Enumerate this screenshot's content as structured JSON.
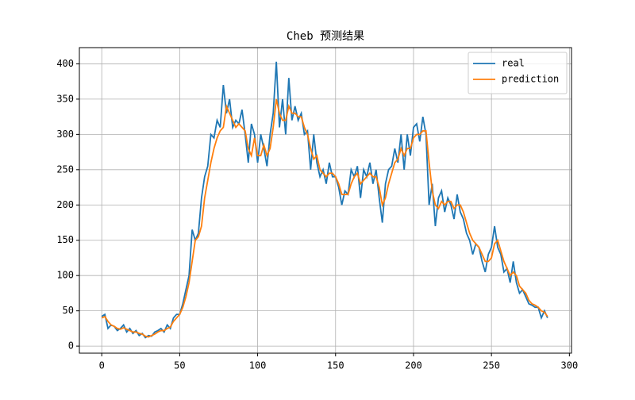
{
  "chart_data": {
    "type": "line",
    "title": "Cheb 预测结果",
    "x": [
      0,
      2,
      4,
      6,
      8,
      10,
      12,
      14,
      16,
      18,
      20,
      22,
      24,
      26,
      28,
      30,
      32,
      34,
      36,
      38,
      40,
      42,
      44,
      46,
      48,
      50,
      52,
      54,
      56,
      58,
      60,
      62,
      64,
      66,
      68,
      70,
      72,
      74,
      76,
      78,
      80,
      82,
      84,
      86,
      88,
      90,
      92,
      94,
      96,
      98,
      100,
      102,
      104,
      106,
      108,
      110,
      112,
      114,
      116,
      118,
      120,
      122,
      124,
      126,
      128,
      130,
      132,
      134,
      136,
      138,
      140,
      142,
      144,
      146,
      148,
      150,
      152,
      154,
      156,
      158,
      160,
      162,
      164,
      166,
      168,
      170,
      172,
      174,
      176,
      178,
      180,
      182,
      184,
      186,
      188,
      190,
      192,
      194,
      196,
      198,
      200,
      202,
      204,
      206,
      208,
      210,
      212,
      214,
      216,
      218,
      220,
      222,
      224,
      226,
      228,
      230,
      232,
      234,
      236,
      238,
      240,
      242,
      244,
      246,
      248,
      250,
      252,
      254,
      256,
      258,
      260,
      262,
      264,
      266,
      268,
      270,
      272,
      274,
      276,
      278,
      280,
      282,
      284,
      286
    ],
    "series": [
      {
        "name": "real",
        "color": "#1f77b4",
        "values": [
          42,
          45,
          25,
          30,
          28,
          22,
          25,
          30,
          20,
          25,
          18,
          22,
          15,
          18,
          12,
          15,
          14,
          20,
          22,
          25,
          20,
          30,
          25,
          40,
          45,
          45,
          60,
          80,
          100,
          165,
          150,
          160,
          210,
          240,
          255,
          300,
          295,
          320,
          310,
          370,
          330,
          350,
          310,
          320,
          315,
          335,
          300,
          260,
          315,
          300,
          260,
          300,
          280,
          255,
          300,
          330,
          403,
          310,
          350,
          300,
          380,
          320,
          340,
          320,
          330,
          300,
          305,
          250,
          300,
          260,
          240,
          250,
          230,
          260,
          240,
          240,
          225,
          200,
          220,
          215,
          250,
          240,
          255,
          210,
          250,
          240,
          260,
          230,
          250,
          210,
          175,
          230,
          250,
          255,
          280,
          260,
          300,
          250,
          300,
          270,
          310,
          315,
          290,
          325,
          300,
          200,
          230,
          170,
          210,
          220,
          190,
          210,
          200,
          180,
          215,
          190,
          180,
          160,
          150,
          130,
          145,
          140,
          120,
          105,
          130,
          140,
          170,
          140,
          130,
          105,
          110,
          90,
          120,
          90,
          75,
          80,
          70,
          60,
          58,
          55,
          55,
          40,
          50,
          40
        ]
      },
      {
        "name": "prediction",
        "color": "#ff7f0e",
        "values": [
          40,
          42,
          35,
          30,
          28,
          25,
          24,
          26,
          24,
          22,
          20,
          20,
          18,
          17,
          14,
          13,
          15,
          17,
          20,
          22,
          22,
          25,
          27,
          35,
          40,
          45,
          55,
          70,
          90,
          120,
          150,
          155,
          170,
          210,
          235,
          260,
          280,
          295,
          305,
          310,
          340,
          330,
          320,
          310,
          315,
          310,
          305,
          280,
          270,
          295,
          270,
          270,
          285,
          270,
          280,
          310,
          350,
          330,
          320,
          320,
          340,
          330,
          330,
          325,
          325,
          310,
          300,
          280,
          265,
          270,
          250,
          245,
          240,
          245,
          245,
          240,
          230,
          215,
          215,
          215,
          230,
          240,
          245,
          230,
          235,
          240,
          245,
          240,
          240,
          225,
          200,
          210,
          230,
          245,
          260,
          265,
          280,
          270,
          280,
          280,
          295,
          300,
          300,
          305,
          305,
          260,
          220,
          200,
          195,
          205,
          200,
          205,
          205,
          195,
          200,
          200,
          190,
          175,
          160,
          150,
          145,
          140,
          130,
          120,
          120,
          125,
          145,
          150,
          135,
          120,
          110,
          100,
          105,
          100,
          85,
          80,
          75,
          65,
          60,
          58,
          55,
          50,
          48,
          42
        ]
      }
    ],
    "xlim": [
      -14.35,
      301.35
    ],
    "xticks": [
      0,
      50,
      100,
      150,
      200,
      250,
      300
    ],
    "ylim": [
      -10,
      423
    ],
    "yticks": [
      0,
      50,
      100,
      150,
      200,
      250,
      300,
      350,
      400
    ],
    "grid": true,
    "legend": "upper right"
  }
}
